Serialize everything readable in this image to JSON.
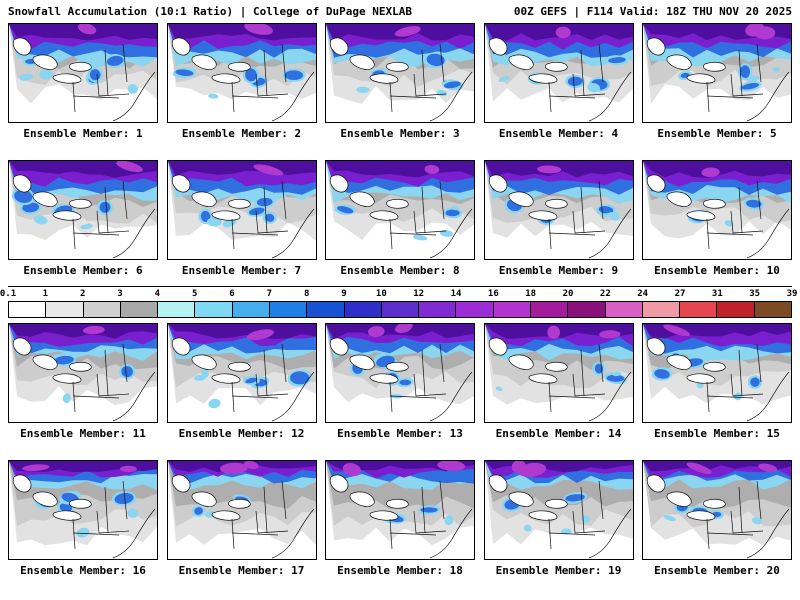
{
  "header": {
    "left": "Snowfall Accumulation (10:1 Ratio) | College of DuPage NEXLAB",
    "right": "00Z GEFS | F114 Valid: 18Z THU NOV 20 2025"
  },
  "panels": [
    {
      "label": "Ensemble Member: 1"
    },
    {
      "label": "Ensemble Member: 2"
    },
    {
      "label": "Ensemble Member: 3"
    },
    {
      "label": "Ensemble Member: 4"
    },
    {
      "label": "Ensemble Member: 5"
    },
    {
      "label": "Ensemble Member: 6"
    },
    {
      "label": "Ensemble Member: 7"
    },
    {
      "label": "Ensemble Member: 8"
    },
    {
      "label": "Ensemble Member: 9"
    },
    {
      "label": "Ensemble Member: 10"
    },
    {
      "label": "Ensemble Member: 11"
    },
    {
      "label": "Ensemble Member: 12"
    },
    {
      "label": "Ensemble Member: 13"
    },
    {
      "label": "Ensemble Member: 14"
    },
    {
      "label": "Ensemble Member: 15"
    },
    {
      "label": "Ensemble Member: 16"
    },
    {
      "label": "Ensemble Member: 17"
    },
    {
      "label": "Ensemble Member: 18"
    },
    {
      "label": "Ensemble Member: 19"
    },
    {
      "label": "Ensemble Member: 20"
    }
  ],
  "colorbar": {
    "ticks": [
      "0.1",
      "1",
      "2",
      "3",
      "4",
      "5",
      "6",
      "7",
      "8",
      "9",
      "10",
      "12",
      "14",
      "16",
      "18",
      "20",
      "22",
      "24",
      "27",
      "31",
      "35",
      "39"
    ],
    "segment_colors": [
      "#ffffff",
      "#e8e8e8",
      "#d0d0d0",
      "#a9a9a9",
      "#b5f2f2",
      "#7fd9f2",
      "#45aeec",
      "#1f7fe4",
      "#1553d2",
      "#2e2ec8",
      "#5c2ecb",
      "#7e2bd2",
      "#9c2cd6",
      "#b233cd",
      "#a21c9c",
      "#8a107c",
      "#d95fc4",
      "#ef9aa4",
      "#e6464e",
      "#bf2128",
      "#7c4a24"
    ]
  },
  "map_palette": {
    "background": "#ffffff",
    "trace_gray": "#e2e2e2",
    "light_gray": "#cdcdcd",
    "moderate_gray": "#aeaeae",
    "cyan": "#8ad5f0",
    "blue": "#2f6fe0",
    "purple": "#7a1fd0",
    "dark_purple": "#4f0f9e",
    "magenta": "#b03ad0",
    "border": "#111111"
  }
}
